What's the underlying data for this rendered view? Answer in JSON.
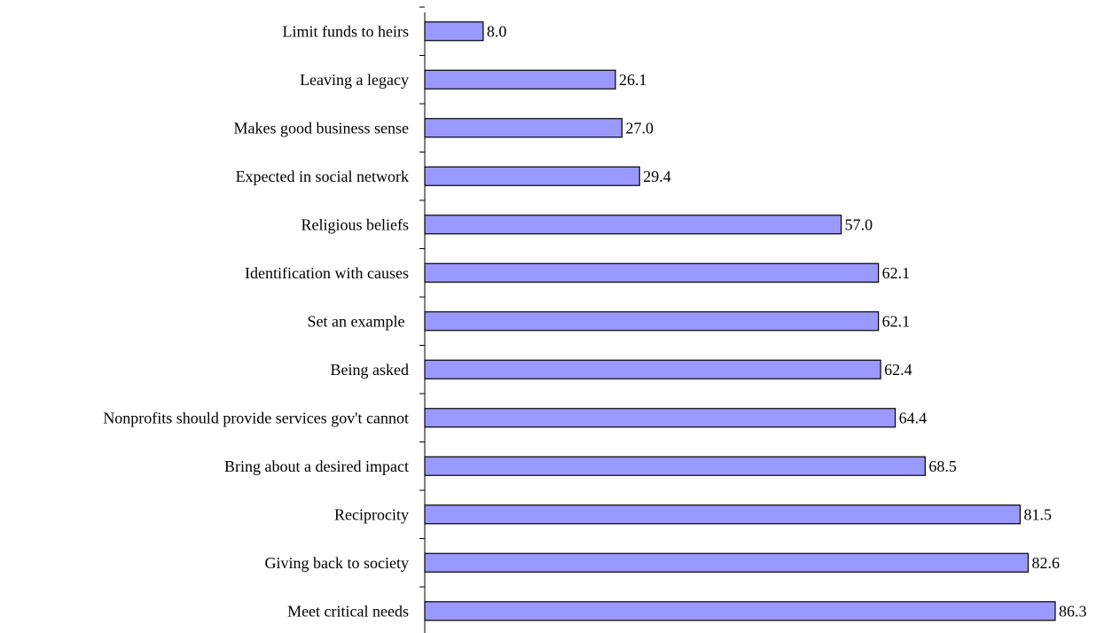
{
  "chart_data": {
    "type": "bar",
    "orientation": "horizontal",
    "categories": [
      "Limit funds to heirs",
      "Leaving a legacy",
      "Makes good business sense",
      "Expected in social network",
      "Religious beliefs",
      "Identification with causes",
      "Set an example ",
      "Being asked",
      "Nonprofits should provide services gov't cannot",
      "Bring about a desired impact",
      "Reciprocity",
      "Giving back to society",
      "Meet critical needs"
    ],
    "values": [
      8.0,
      26.1,
      27.0,
      29.4,
      57.0,
      62.1,
      62.1,
      62.4,
      64.4,
      68.5,
      81.5,
      82.6,
      86.3
    ],
    "value_labels": [
      "8.0",
      "26.1",
      "27.0",
      "29.4",
      "57.0",
      "62.1",
      "62.1",
      "62.4",
      "64.4",
      "68.5",
      "81.5",
      "82.6",
      "86.3"
    ],
    "title": "",
    "xlabel": "",
    "ylabel": "",
    "xlim": [
      0,
      86.3
    ],
    "grid": false,
    "legend": "none",
    "colors": {
      "bar_fill": "#9999FF",
      "bar_stroke": "#000000",
      "axis": "#000000",
      "text": "#000000"
    }
  }
}
